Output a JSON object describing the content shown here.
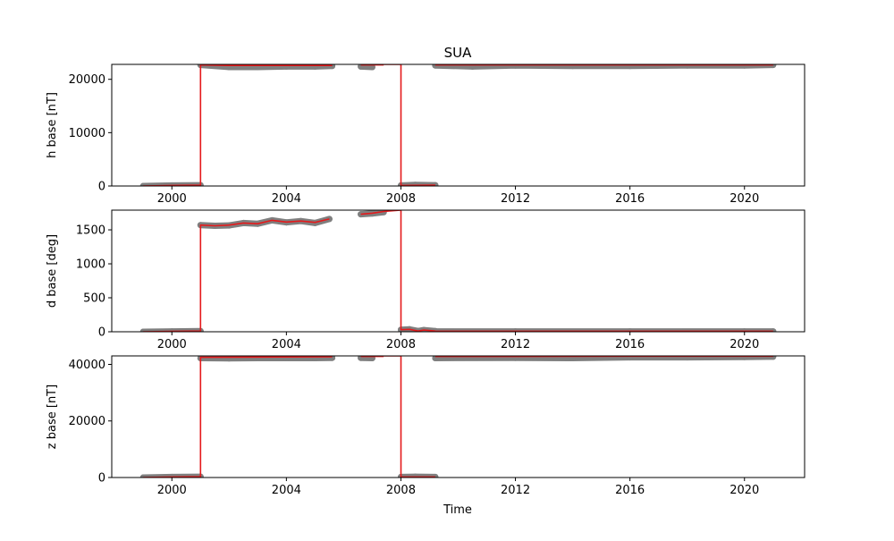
{
  "chart_data": {
    "type": "line",
    "title": "SUA",
    "xlabel": "Time",
    "x_ticks": [
      2000,
      2004,
      2008,
      2012,
      2016,
      2020
    ],
    "xlim": [
      1997.9,
      2022.1
    ],
    "colors": {
      "points": "#7f7f7f",
      "line": "#e41a1c"
    },
    "subplots": [
      {
        "ylabel": "h base [nT]",
        "ylim": [
          0,
          22800
        ],
        "y_ticks": [
          0,
          10000,
          20000
        ],
        "points_segments": [
          {
            "x": [
              1999.0,
              2000.0,
              2001.0
            ],
            "y": [
              0,
              100,
              150
            ]
          },
          {
            "x": [
              2001.0,
              2002.0,
              2003.0,
              2004.0,
              2005.0,
              2005.6
            ],
            "y": [
              22700,
              22300,
              22300,
              22400,
              22400,
              22500
            ]
          },
          {
            "x": [
              2006.6,
              2007.0
            ],
            "y": [
              22400,
              22300
            ]
          },
          {
            "x": [
              2008.0,
              2008.5,
              2009.2
            ],
            "y": [
              100,
              200,
              150
            ]
          },
          {
            "x": [
              2009.2,
              2010.5,
              2012.0,
              2014.0,
              2016.0,
              2018.0,
              2020.0,
              2021.0
            ],
            "y": [
              22600,
              22400,
              22600,
              22500,
              22500,
              22600,
              22600,
              22700
            ]
          }
        ],
        "line_segments": [
          {
            "x": [
              1999.0,
              2000.0,
              2001.0,
              2001.0,
              2002.0,
              2003.0,
              2004.0,
              2005.0,
              2005.6
            ],
            "y": [
              0,
              100,
              150,
              22700,
              22600,
              22600,
              22600,
              22600,
              22600
            ]
          },
          {
            "x": [
              2006.6,
              2007.0,
              2007.4
            ],
            "y": [
              22700,
              22700,
              22700
            ]
          },
          {
            "x": [
              2007.4,
              2008.0,
              2008.0,
              2009.2
            ],
            "y": [
              22800,
              22800,
              100,
              150
            ]
          },
          {
            "x": [
              2009.2,
              2012.0,
              2016.0,
              2020.0,
              2021.0
            ],
            "y": [
              22700,
              22700,
              22700,
              22700,
              22700
            ]
          }
        ]
      },
      {
        "ylabel": "d base [deg]",
        "ylim": [
          0,
          1790
        ],
        "y_ticks": [
          0,
          500,
          1000,
          1500
        ],
        "points_segments": [
          {
            "x": [
              1999.0,
              2000.0,
              2001.0
            ],
            "y": [
              0,
              5,
              10
            ]
          },
          {
            "x": [
              2001.0,
              2001.5,
              2002.0,
              2002.5,
              2003.0,
              2003.5,
              2004.0,
              2004.5,
              2005.0,
              2005.5
            ],
            "y": [
              1570,
              1560,
              1565,
              1600,
              1590,
              1640,
              1610,
              1630,
              1600,
              1660
            ]
          },
          {
            "x": [
              2006.6,
              2007.0,
              2007.4
            ],
            "y": [
              1730,
              1740,
              1760
            ]
          },
          {
            "x": [
              2008.0,
              2008.3,
              2008.6,
              2008.8,
              2009.2
            ],
            "y": [
              30,
              35,
              10,
              25,
              10
            ]
          },
          {
            "x": [
              2009.2,
              2012.0,
              2016.0,
              2020.0,
              2021.0
            ],
            "y": [
              5,
              5,
              5,
              5,
              5
            ]
          }
        ],
        "line_segments": [
          {
            "x": [
              1999.0,
              2000.0,
              2001.0,
              2001.0,
              2001.5,
              2002.0,
              2002.5,
              2003.0,
              2003.5,
              2004.0,
              2004.5,
              2005.0,
              2005.5
            ],
            "y": [
              0,
              5,
              10,
              1570,
              1560,
              1570,
              1600,
              1590,
              1640,
              1615,
              1630,
              1610,
              1660
            ]
          },
          {
            "x": [
              2006.6,
              2007.0,
              2007.4,
              2008.0,
              2008.0,
              2008.3,
              2008.6,
              2008.8,
              2009.2
            ],
            "y": [
              1730,
              1745,
              1770,
              1790,
              30,
              35,
              10,
              25,
              10
            ]
          },
          {
            "x": [
              2009.2,
              2012.0,
              2016.0,
              2020.0,
              2021.0
            ],
            "y": [
              8,
              8,
              8,
              8,
              8
            ]
          }
        ]
      },
      {
        "ylabel": "z base [nT]",
        "ylim": [
          0,
          43000
        ],
        "y_ticks": [
          0,
          20000,
          40000
        ],
        "points_segments": [
          {
            "x": [
              1999.0,
              2000.0,
              2001.0
            ],
            "y": [
              0,
              200,
              300
            ]
          },
          {
            "x": [
              2001.0,
              2002.0,
              2003.0,
              2004.0,
              2005.0,
              2005.6
            ],
            "y": [
              42200,
              42100,
              42200,
              42200,
              42200,
              42300
            ]
          },
          {
            "x": [
              2006.6,
              2007.0
            ],
            "y": [
              42300,
              42200
            ]
          },
          {
            "x": [
              2008.0,
              2008.5,
              2009.2
            ],
            "y": [
              200,
              300,
              200
            ]
          },
          {
            "x": [
              2009.2,
              2012.0,
              2014.0,
              2016.0,
              2018.0,
              2020.0,
              2021.0
            ],
            "y": [
              42200,
              42300,
              42200,
              42500,
              42500,
              42600,
              42700
            ]
          }
        ],
        "line_segments": [
          {
            "x": [
              1999.0,
              2000.0,
              2001.0,
              2001.0,
              2003.0,
              2005.6
            ],
            "y": [
              0,
              200,
              300,
              42500,
              42600,
              42700
            ]
          },
          {
            "x": [
              2006.6,
              2007.4
            ],
            "y": [
              42800,
              42800
            ]
          },
          {
            "x": [
              2007.4,
              2008.0,
              2008.0,
              2009.2
            ],
            "y": [
              43000,
              43000,
              200,
              200
            ]
          },
          {
            "x": [
              2009.2,
              2012.0,
              2016.0,
              2020.0,
              2021.0
            ],
            "y": [
              42800,
              42800,
              42900,
              42900,
              42900
            ]
          }
        ]
      }
    ]
  }
}
